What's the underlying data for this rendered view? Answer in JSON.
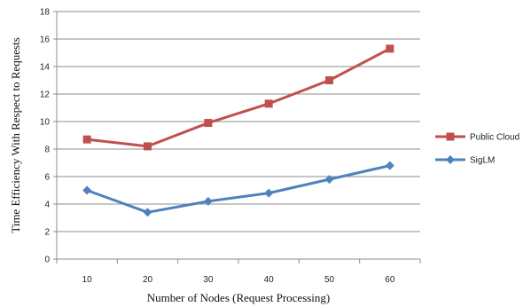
{
  "chart_data": {
    "type": "line",
    "xlabel": "Number of Nodes (Request Processing)",
    "ylabel": "Time Efficiency With Respect to Requests",
    "categories": [
      "10",
      "20",
      "30",
      "40",
      "50",
      "60"
    ],
    "ylim": [
      0,
      18
    ],
    "yticks": [
      "0",
      "2",
      "4",
      "6",
      "8",
      "10",
      "12",
      "14",
      "16",
      "18"
    ],
    "grid": true,
    "legend_position": "right",
    "series": [
      {
        "name": "Public Cloud",
        "values": [
          8.7,
          8.2,
          9.9,
          11.3,
          13.0,
          15.3
        ],
        "color": "#c0504d",
        "marker": "square"
      },
      {
        "name": "SigLM",
        "values": [
          5.0,
          3.4,
          4.2,
          4.8,
          5.8,
          6.8
        ],
        "color": "#4f81bd",
        "marker": "diamond"
      }
    ]
  }
}
